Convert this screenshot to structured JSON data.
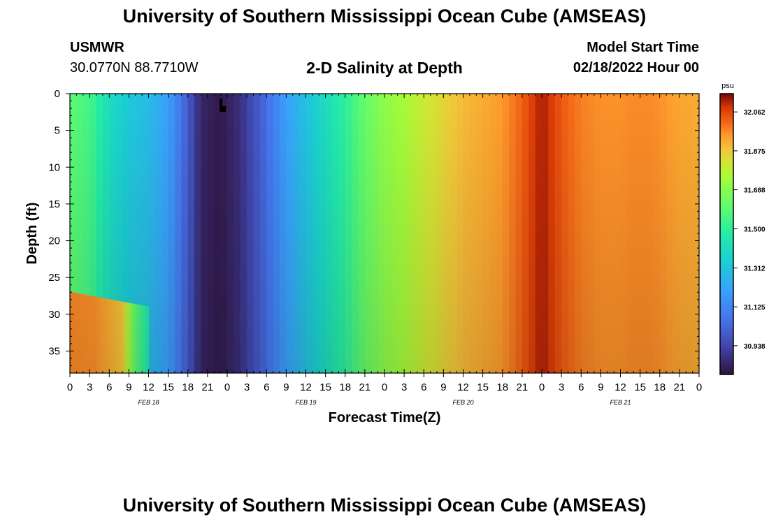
{
  "header": {
    "title": "University of Southern Mississippi Ocean Cube (AMSEAS)",
    "station": "USMWR",
    "coords": "30.0770N  88.7710W",
    "plot_title": "2-D Salinity at Depth",
    "model_label": "Model Start Time",
    "model_time": "02/18/2022 Hour 00"
  },
  "footer": {
    "title": "University of Southern Mississippi Ocean Cube (AMSEAS)"
  },
  "chart_data": {
    "type": "heatmap",
    "title": "2-D Salinity at Depth",
    "xlabel": "Forecast Time(Z)",
    "ylabel": "Depth (ft)",
    "x_unit": "hours since model start",
    "xlim": [
      0,
      96
    ],
    "ylim": [
      0,
      38
    ],
    "x_ticks": [
      0,
      3,
      6,
      9,
      12,
      15,
      18,
      21,
      24,
      27,
      30,
      33,
      36,
      39,
      42,
      45,
      48,
      51,
      54,
      57,
      60,
      63,
      66,
      69,
      72,
      75,
      78,
      81,
      84,
      87,
      90,
      93,
      96
    ],
    "x_tick_labels": [
      "0",
      "3",
      "6",
      "9",
      "12",
      "15",
      "18",
      "21",
      "0",
      "3",
      "6",
      "9",
      "12",
      "15",
      "18",
      "21",
      "0",
      "3",
      "6",
      "9",
      "12",
      "15",
      "18",
      "21",
      "0",
      "3",
      "6",
      "9",
      "12",
      "15",
      "18",
      "21",
      "0"
    ],
    "date_labels": [
      {
        "x": 12,
        "label": "FEB 18"
      },
      {
        "x": 36,
        "label": "FEB 19"
      },
      {
        "x": 60,
        "label": "FEB 20"
      },
      {
        "x": 84,
        "label": "FEB 21"
      }
    ],
    "y_ticks": [
      0,
      5,
      10,
      15,
      20,
      25,
      30,
      35
    ],
    "colorbar": {
      "unit": "psu",
      "min": 30.8,
      "max": 32.15,
      "ticks": [
        32.062,
        31.875,
        31.688,
        31.5,
        31.312,
        31.125,
        30.938
      ],
      "tick_labels": [
        "32.062",
        "31.875",
        "31.688",
        "31.500",
        "31.312",
        "31.125",
        "30.938"
      ]
    },
    "salinity_surface": {
      "hours": [
        0,
        3,
        6,
        9,
        12,
        15,
        18,
        20,
        23,
        26,
        30,
        33,
        36,
        39,
        42,
        45,
        48,
        51,
        54,
        57,
        60,
        63,
        66,
        69,
        72,
        75,
        78,
        81,
        84,
        87,
        90,
        93,
        96
      ],
      "values": [
        31.6,
        31.55,
        31.4,
        31.32,
        31.28,
        31.2,
        31.0,
        30.85,
        30.82,
        30.88,
        31.05,
        31.2,
        31.3,
        31.4,
        31.5,
        31.62,
        31.7,
        31.75,
        31.8,
        31.85,
        31.9,
        31.92,
        31.95,
        32.02,
        32.12,
        32.03,
        31.98,
        31.96,
        31.96,
        31.97,
        31.96,
        31.93,
        31.92
      ]
    },
    "salinity_bottom": {
      "depth_range_ft": [
        27,
        38
      ],
      "hours": [
        0,
        4,
        8,
        10,
        12
      ],
      "values": [
        31.97,
        31.96,
        31.88,
        31.6,
        31.45
      ]
    }
  }
}
